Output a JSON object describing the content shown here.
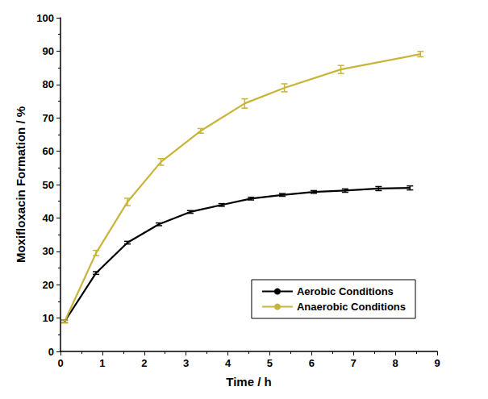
{
  "chart_data": {
    "type": "line",
    "x_label": "Time / h",
    "y_label": "Moxifloxacin Formation / %",
    "xlim": [
      0,
      9
    ],
    "xticks": [
      0,
      1,
      2,
      3,
      4,
      5,
      6,
      7,
      8,
      9
    ],
    "ylim": [
      0,
      100
    ],
    "yticks": [
      0,
      10,
      20,
      30,
      40,
      50,
      60,
      70,
      80,
      90,
      100
    ],
    "grid": false,
    "legend": "lower right",
    "marker": "none",
    "series": [
      {
        "name": "Aerobic Conditions",
        "color": "#000000",
        "x": [
          0.1,
          0.85,
          1.6,
          2.35,
          3.1,
          3.85,
          4.55,
          5.3,
          6.05,
          6.8,
          7.6,
          8.35
        ],
        "values": [
          9,
          23.5,
          32.6,
          38.1,
          41.8,
          43.9,
          45.8,
          46.9,
          47.8,
          48.2,
          48.8,
          49
        ],
        "errors": [
          0.4,
          0.4,
          0.4,
          0.4,
          0.4,
          0.4,
          0.4,
          0.4,
          0.4,
          0.5,
          0.6,
          0.6
        ]
      },
      {
        "name": "Anaerobic Conditions",
        "color": "#c9b43a",
        "x": [
          0.1,
          0.85,
          1.6,
          2.4,
          3.35,
          4.4,
          5.35,
          6.7,
          8.6
        ],
        "values": [
          9,
          29.5,
          44.8,
          56.8,
          66.1,
          74.3,
          79,
          84.5,
          89.1
        ],
        "errors": [
          0.4,
          0.8,
          1.1,
          1.0,
          0.7,
          1.4,
          1.2,
          1.2,
          0.8
        ]
      }
    ]
  }
}
